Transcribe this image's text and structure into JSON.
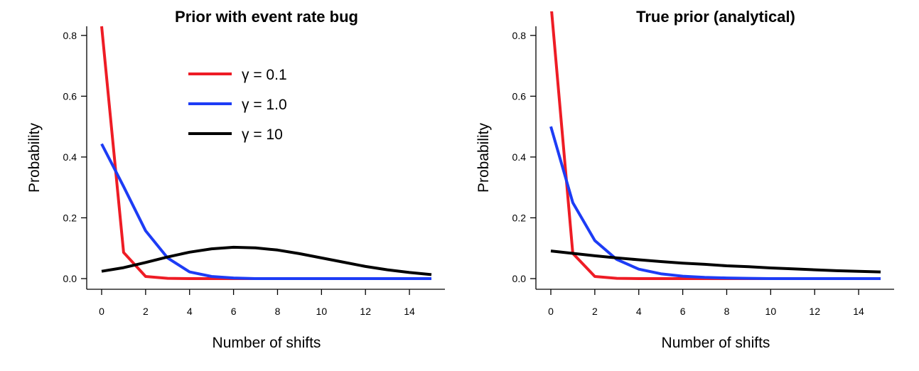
{
  "chart_data": [
    {
      "type": "line",
      "title": "Prior with event rate bug",
      "xlabel": "Number of shifts",
      "ylabel": "Probability",
      "xlim": [
        0,
        15
      ],
      "ylim": [
        0,
        0.83
      ],
      "xticks": [
        0,
        2,
        4,
        6,
        8,
        10,
        12,
        14
      ],
      "xtick_labels": [
        "0",
        "2",
        "4",
        "6",
        "8",
        "10",
        "12",
        "14"
      ],
      "yticks": [
        0,
        0.2,
        0.4,
        0.6,
        0.8
      ],
      "ytick_labels": [
        "0.0",
        "0.2",
        "0.4",
        "0.6",
        "0.8"
      ],
      "grid": false,
      "legend": "top-center",
      "x": [
        0,
        1,
        2,
        3,
        4,
        5,
        6,
        7,
        8,
        9,
        10,
        11,
        12,
        13,
        14,
        15
      ],
      "series": [
        {
          "name": "γ = 0.1",
          "color": "#ee1c25",
          "values": [
            0.83,
            0.086,
            0.007,
            0.001,
            0.0,
            0.0,
            0.0,
            0.0,
            0.0,
            0.0,
            0.0,
            0.0,
            0.0,
            0.0,
            0.0,
            0.0
          ]
        },
        {
          "name": "γ = 1.0",
          "color": "#1d3cf5",
          "values": [
            0.443,
            0.303,
            0.157,
            0.068,
            0.022,
            0.007,
            0.002,
            0.0,
            0.0,
            0.0,
            0.0,
            0.0,
            0.0,
            0.0,
            0.0,
            0.0
          ]
        },
        {
          "name": "γ = 10",
          "color": "#000000",
          "values": [
            0.024,
            0.036,
            0.053,
            0.071,
            0.087,
            0.098,
            0.103,
            0.101,
            0.094,
            0.082,
            0.068,
            0.054,
            0.04,
            0.029,
            0.02,
            0.013
          ]
        }
      ]
    },
    {
      "type": "line",
      "title": "True prior (analytical)",
      "xlabel": "Number of shifts",
      "ylabel": "Probability",
      "xlim": [
        0,
        15
      ],
      "ylim": [
        0,
        0.83
      ],
      "xticks": [
        0,
        2,
        4,
        6,
        8,
        10,
        12,
        14
      ],
      "xtick_labels": [
        "0",
        "2",
        "4",
        "6",
        "8",
        "10",
        "12",
        "14"
      ],
      "yticks": [
        0,
        0.2,
        0.4,
        0.6,
        0.8
      ],
      "ytick_labels": [
        "0.0",
        "0.2",
        "0.4",
        "0.6",
        "0.8"
      ],
      "grid": false,
      "x": [
        0,
        1,
        2,
        3,
        4,
        5,
        6,
        7,
        8,
        9,
        10,
        11,
        12,
        13,
        14,
        15
      ],
      "series": [
        {
          "color": "#ee1c25",
          "values": [
            0.909,
            0.083,
            0.007,
            0.001,
            0.0,
            0.0,
            0.0,
            0.0,
            0.0,
            0.0,
            0.0,
            0.0,
            0.0,
            0.0,
            0.0,
            0.0
          ]
        },
        {
          "color": "#1d3cf5",
          "values": [
            0.5,
            0.25,
            0.125,
            0.063,
            0.031,
            0.016,
            0.008,
            0.004,
            0.002,
            0.001,
            0.0,
            0.0,
            0.0,
            0.0,
            0.0,
            0.0
          ]
        },
        {
          "color": "#000000",
          "values": [
            0.091,
            0.083,
            0.075,
            0.068,
            0.062,
            0.056,
            0.051,
            0.047,
            0.042,
            0.039,
            0.035,
            0.032,
            0.029,
            0.026,
            0.024,
            0.022
          ]
        }
      ]
    }
  ]
}
